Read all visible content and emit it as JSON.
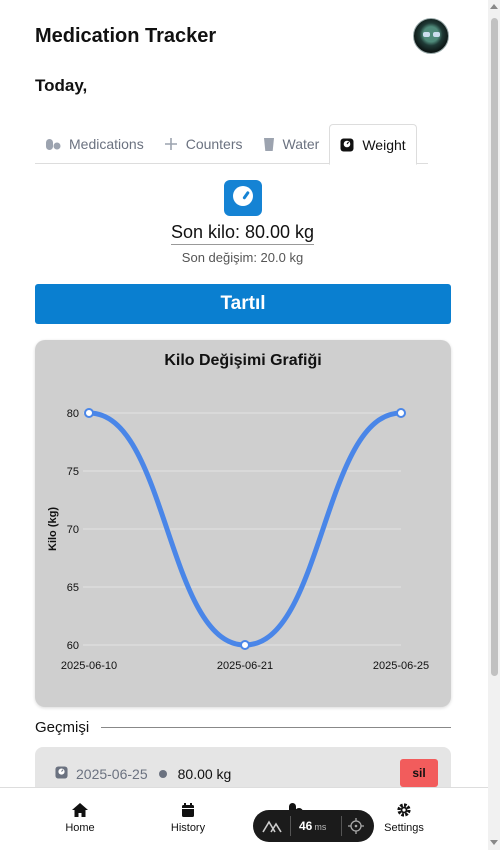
{
  "header": {
    "title": "Medication Tracker"
  },
  "today_label": "Today,",
  "tabs": [
    {
      "label": "Medications",
      "icon": "pills-icon"
    },
    {
      "label": "Counters",
      "icon": "plus-icon"
    },
    {
      "label": "Water",
      "icon": "glass-icon"
    },
    {
      "label": "Weight",
      "icon": "scale-icon",
      "active": true
    }
  ],
  "weight": {
    "last": "Son kilo: 80.00 kg",
    "change": "Son değişim: 20.0 kg",
    "weigh_button": "Tartıl"
  },
  "chart_data": {
    "type": "line",
    "title": "Kilo Değişimi Grafiği",
    "xlabel": "",
    "ylabel": "Kilo (kg)",
    "x": [
      "2025-06-10",
      "2025-06-21",
      "2025-06-25"
    ],
    "series": [
      {
        "values": [
          80,
          60,
          80
        ]
      }
    ],
    "yticks": [
      60,
      65,
      70,
      75,
      80
    ],
    "ylim": [
      60,
      80
    ],
    "grid": true,
    "color": "#4a86e8"
  },
  "history": {
    "title": "Geçmişi",
    "items": [
      {
        "date": "2025-06-25",
        "value": "80.00 kg",
        "delete_label": "sil"
      }
    ]
  },
  "nav": [
    {
      "label": "Home",
      "icon": "home-icon"
    },
    {
      "label": "History",
      "icon": "calendar-icon"
    },
    {
      "label": "Settings",
      "icon": "gear-icon"
    }
  ],
  "perf": {
    "value": "46",
    "unit": "ms"
  },
  "colors": {
    "accent": "#0a7fd0",
    "chart_line": "#4a86e8",
    "delete": "#f25c5c"
  }
}
